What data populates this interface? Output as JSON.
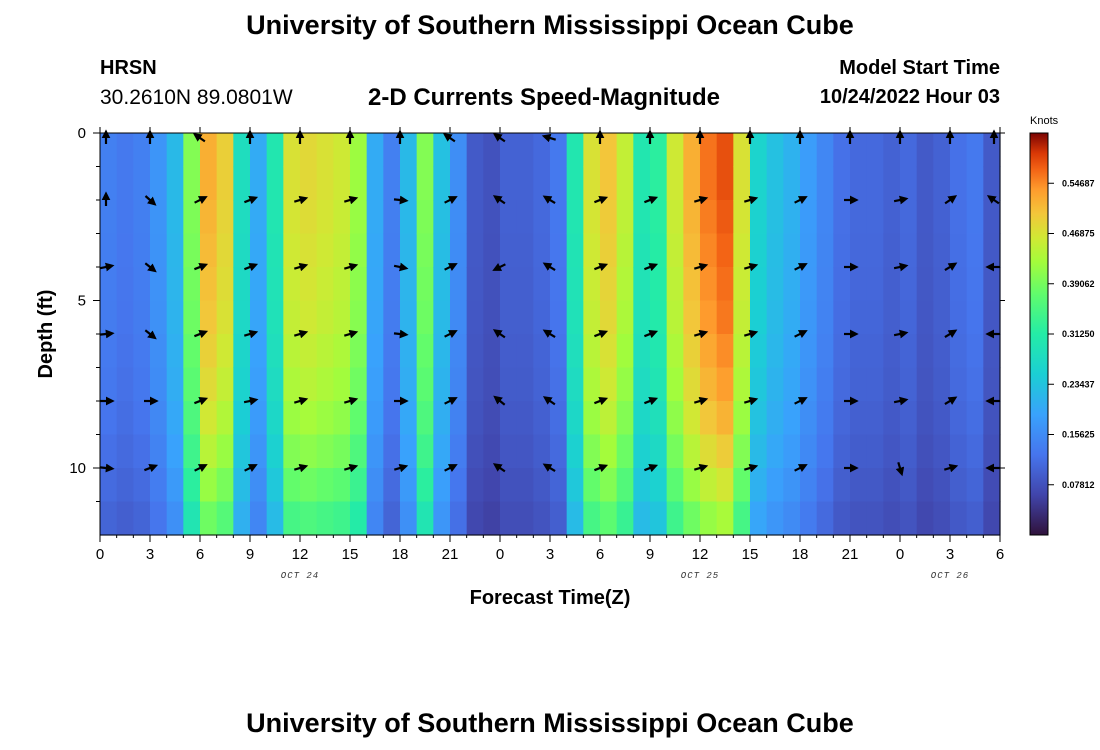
{
  "header": {
    "title": "University of Southern Mississippi Ocean Cube",
    "station": "HRSN",
    "coordinates": "30.2610N  89.0801W",
    "subtitle": "2-D Currents Speed-Magnitude",
    "model_start_label": "Model Start Time",
    "model_start_value": "10/24/2022 Hour 03"
  },
  "footer": {
    "title": "University of Southern Mississippi Ocean Cube"
  },
  "chart_data": {
    "type": "heatmap",
    "title": "2-D Currents Speed-Magnitude",
    "xlabel": "Forecast Time(Z)",
    "ylabel": "Depth (ft)",
    "colorbar_label": "Knots",
    "colorbar_ticks": [
      "0.07812",
      "0.15625",
      "0.23437",
      "0.31250",
      "0.39062",
      "0.46875",
      "0.54687"
    ],
    "color_range": [
      0,
      0.625
    ],
    "x_range": [
      0,
      54
    ],
    "y_range": [
      0,
      12
    ],
    "x_tick_labels": [
      "0",
      "3",
      "6",
      "9",
      "12",
      "15",
      "18",
      "21",
      "0",
      "3",
      "6",
      "9",
      "12",
      "15",
      "18",
      "21",
      "0",
      "3",
      "6"
    ],
    "y_tick_labels": [
      "0",
      "5",
      "10"
    ],
    "y_tick_values": [
      0,
      5,
      10
    ],
    "date_labels": [
      {
        "hour": 12,
        "text": "OCT 24"
      },
      {
        "hour": 36,
        "text": "OCT 25"
      },
      {
        "hour": 51,
        "text": "OCT 26"
      }
    ],
    "depths": [
      0,
      1,
      2,
      3,
      4,
      5,
      6,
      7,
      8,
      9,
      10,
      11
    ],
    "speed_by_hour": [
      0.14,
      0.13,
      0.14,
      0.17,
      0.22,
      0.4,
      0.52,
      0.49,
      0.28,
      0.2,
      0.3,
      0.47,
      0.48,
      0.47,
      0.46,
      0.42,
      0.2,
      0.14,
      0.22,
      0.4,
      0.23,
      0.16,
      0.09,
      0.08,
      0.1,
      0.1,
      0.11,
      0.13,
      0.3,
      0.47,
      0.5,
      0.45,
      0.3,
      0.32,
      0.46,
      0.52,
      0.56,
      0.58,
      0.47,
      0.26,
      0.23,
      0.21,
      0.18,
      0.15,
      0.12,
      0.11,
      0.11,
      0.1,
      0.11,
      0.09,
      0.1,
      0.12,
      0.13,
      0.09
    ],
    "depth_factor": [
      1.0,
      1.0,
      0.99,
      0.98,
      0.97,
      0.96,
      0.94,
      0.92,
      0.89,
      0.85,
      0.8,
      0.74
    ],
    "arrows": [
      {
        "t": 0,
        "d": [
          [
            0,
            1
          ],
          [
            0,
            1
          ],
          [
            1,
            0.2
          ],
          [
            1,
            0.1
          ],
          [
            1,
            0
          ],
          [
            1,
            -0.1
          ]
        ]
      },
      {
        "t": 3,
        "d": [
          [
            0,
            1
          ],
          [
            1,
            -0.9
          ],
          [
            1,
            -0.8
          ],
          [
            1,
            -0.8
          ],
          [
            1,
            0
          ],
          [
            1,
            0.4
          ]
        ]
      },
      {
        "t": 6,
        "d": [
          [
            -1,
            0.7
          ],
          [
            1,
            0.5
          ],
          [
            1,
            0.4
          ],
          [
            1,
            0.4
          ],
          [
            1,
            0.4
          ],
          [
            1,
            0.5
          ]
        ]
      },
      {
        "t": 9,
        "d": [
          [
            0,
            1
          ],
          [
            1,
            0.4
          ],
          [
            1,
            0.4
          ],
          [
            1,
            0.3
          ],
          [
            1,
            0.2
          ],
          [
            1,
            0.5
          ]
        ]
      },
      {
        "t": 12,
        "d": [
          [
            0,
            1
          ],
          [
            1,
            0.3
          ],
          [
            1,
            0.3
          ],
          [
            1,
            0.3
          ],
          [
            1,
            0.3
          ],
          [
            1,
            0.3
          ]
        ]
      },
      {
        "t": 15,
        "d": [
          [
            0,
            1
          ],
          [
            1,
            0.3
          ],
          [
            1,
            0.3
          ],
          [
            1,
            0.3
          ],
          [
            1,
            0.3
          ],
          [
            1,
            0.3
          ]
        ]
      },
      {
        "t": 18,
        "d": [
          [
            0,
            1
          ],
          [
            1,
            -0.1
          ],
          [
            1,
            -0.2
          ],
          [
            1,
            -0.1
          ],
          [
            1,
            0
          ],
          [
            1,
            0.3
          ]
        ]
      },
      {
        "t": 21,
        "d": [
          [
            -1,
            0.7
          ],
          [
            1,
            0.5
          ],
          [
            1,
            0.5
          ],
          [
            1,
            0.5
          ],
          [
            1,
            0.5
          ],
          [
            1,
            0.5
          ]
        ]
      },
      {
        "t": 24,
        "d": [
          [
            -1,
            0.7
          ],
          [
            -1,
            0.7
          ],
          [
            -1,
            -0.5
          ],
          [
            -1,
            0.7
          ],
          [
            -1,
            0.8
          ],
          [
            -1,
            0.7
          ]
        ]
      },
      {
        "t": 27,
        "d": [
          [
            -1,
            0.3
          ],
          [
            -1,
            0.6
          ],
          [
            -1,
            0.6
          ],
          [
            -1,
            0.6
          ],
          [
            -1,
            0.7
          ],
          [
            -1,
            0.6
          ]
        ]
      },
      {
        "t": 30,
        "d": [
          [
            0,
            1
          ],
          [
            1,
            0.4
          ],
          [
            1,
            0.4
          ],
          [
            1,
            0.4
          ],
          [
            1,
            0.4
          ],
          [
            1,
            0.4
          ]
        ]
      },
      {
        "t": 33,
        "d": [
          [
            0,
            1
          ],
          [
            1,
            0.4
          ],
          [
            1,
            0.4
          ],
          [
            1,
            0.4
          ],
          [
            1,
            0.4
          ],
          [
            1,
            0.4
          ]
        ]
      },
      {
        "t": 36,
        "d": [
          [
            0,
            1
          ],
          [
            1,
            0.3
          ],
          [
            1,
            0.3
          ],
          [
            1,
            0.3
          ],
          [
            1,
            0.3
          ],
          [
            1,
            0.3
          ]
        ]
      },
      {
        "t": 39,
        "d": [
          [
            0,
            1
          ],
          [
            1,
            0.3
          ],
          [
            1,
            0.3
          ],
          [
            1,
            0.3
          ],
          [
            1,
            0.3
          ],
          [
            1,
            0.3
          ]
        ]
      },
      {
        "t": 42,
        "d": [
          [
            0,
            1
          ],
          [
            1,
            0.5
          ],
          [
            1,
            0.5
          ],
          [
            1,
            0.5
          ],
          [
            1,
            0.5
          ],
          [
            1,
            0.5
          ]
        ]
      },
      {
        "t": 45,
        "d": [
          [
            0,
            1
          ],
          [
            1,
            0
          ],
          [
            1,
            0
          ],
          [
            1,
            0
          ],
          [
            1,
            0
          ],
          [
            1,
            0
          ]
        ]
      },
      {
        "t": 48,
        "d": [
          [
            0,
            1
          ],
          [
            1,
            0.2
          ],
          [
            1,
            0.2
          ],
          [
            1,
            0.2
          ],
          [
            1,
            0.2
          ],
          [
            0.3,
            -1
          ]
        ]
      },
      {
        "t": 51,
        "d": [
          [
            0,
            1
          ],
          [
            1,
            0.7
          ],
          [
            1,
            0.6
          ],
          [
            1,
            0.6
          ],
          [
            1,
            0.6
          ],
          [
            1,
            0.3
          ]
        ]
      },
      {
        "t": 54,
        "d": [
          [
            0,
            1
          ],
          [
            -1,
            0.7
          ],
          [
            -1,
            0
          ],
          [
            -1,
            0
          ],
          [
            -1,
            0
          ],
          [
            -1,
            0
          ]
        ]
      }
    ],
    "arrow_depths": [
      0,
      2,
      4,
      6,
      8,
      10
    ]
  }
}
